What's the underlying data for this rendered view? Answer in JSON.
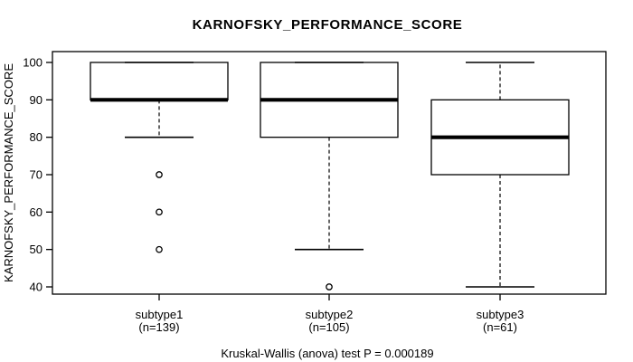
{
  "chart_data": {
    "type": "boxplot",
    "title": "KARNOFSKY_PERFORMANCE_SCORE",
    "ylabel": "KARNOFSKY_PERFORMANCE_SCORE",
    "footnote": "Kruskal-Wallis (anova) test P = 0.000189",
    "y_ticks": [
      40,
      50,
      60,
      70,
      80,
      90,
      100
    ],
    "ylim": [
      37.6,
      102.4
    ],
    "grid": false,
    "groups": [
      {
        "label": "subtype1",
        "sublabel": "(n=139)",
        "n": 139,
        "q1": 90,
        "median": 90,
        "q3": 100,
        "whisker_low": 80,
        "whisker_high": 100,
        "outliers": [
          70,
          60,
          50
        ]
      },
      {
        "label": "subtype2",
        "sublabel": "(n=105)",
        "n": 105,
        "q1": 80,
        "median": 90,
        "q3": 100,
        "whisker_low": 50,
        "whisker_high": 100,
        "outliers": [
          40
        ]
      },
      {
        "label": "subtype3",
        "sublabel": "(n=61)",
        "n": 61,
        "q1": 70,
        "median": 80,
        "q3": 90,
        "whisker_low": 40,
        "whisker_high": 100,
        "outliers": []
      }
    ],
    "colors": {
      "line": "#000000",
      "box_fill": "#ffffff",
      "background": "#ffffff"
    }
  }
}
